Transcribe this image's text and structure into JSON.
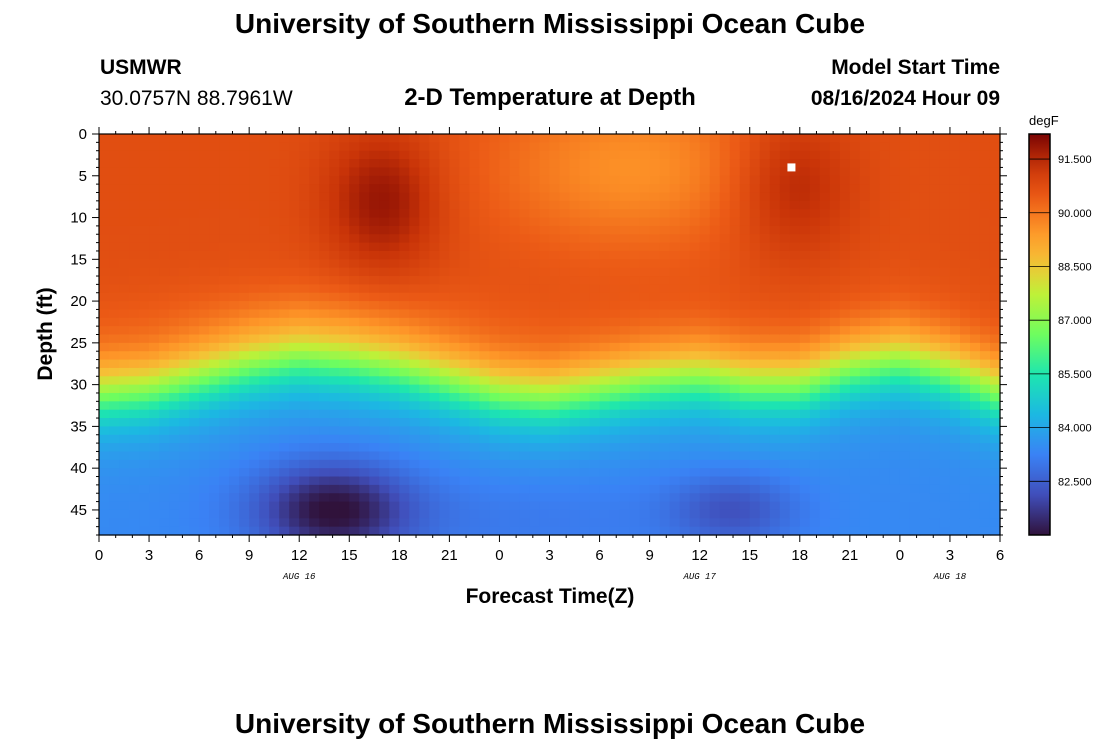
{
  "header": {
    "title": "University of Southern Mississippi Ocean Cube",
    "footer_title": "University of Southern Mississippi Ocean Cube",
    "station": "USMWR",
    "coords": "30.0757N  88.7961W",
    "plot_title": "2-D Temperature at Depth",
    "model_start_label": "Model Start Time",
    "model_start_value": "08/16/2024 Hour 09"
  },
  "chart_data": {
    "type": "heatmap",
    "title": "2-D Temperature at Depth",
    "xlabel": "Forecast Time(Z)",
    "ylabel": "Depth (ft)",
    "x_hours_range": [
      0,
      54
    ],
    "x_tick_labels": [
      "0",
      "3",
      "6",
      "9",
      "12",
      "15",
      "18",
      "21",
      "0",
      "3",
      "6",
      "9",
      "12",
      "15",
      "18",
      "21",
      "0",
      "3",
      "6"
    ],
    "x_tick_hours": [
      0,
      3,
      6,
      9,
      12,
      15,
      18,
      21,
      24,
      27,
      30,
      33,
      36,
      39,
      42,
      45,
      48,
      51,
      54
    ],
    "date_labels": [
      {
        "text": "AUG 16",
        "hour": 12
      },
      {
        "text": "AUG 17",
        "hour": 36
      },
      {
        "text": "AUG 18",
        "hour": 51
      }
    ],
    "y_range": [
      0,
      48
    ],
    "y_ticks": [
      0,
      5,
      10,
      15,
      20,
      25,
      30,
      35,
      40,
      45
    ],
    "colorbar": {
      "unit": "degF",
      "range": [
        81.0,
        92.2
      ],
      "tick_values": [
        91.5,
        90.0,
        88.5,
        87.0,
        85.5,
        84.0,
        82.5
      ],
      "tick_labels": [
        "91.500",
        "90.000",
        "88.500",
        "87.000",
        "85.500",
        "84.000",
        "82.500"
      ]
    },
    "thermocline_depth_ft": [
      {
        "hour": 0,
        "depth": 31
      },
      {
        "hour": 3,
        "depth": 30.5
      },
      {
        "hour": 6,
        "depth": 29
      },
      {
        "hour": 9,
        "depth": 27.5
      },
      {
        "hour": 12,
        "depth": 26.5
      },
      {
        "hour": 15,
        "depth": 27
      },
      {
        "hour": 18,
        "depth": 28
      },
      {
        "hour": 21,
        "depth": 29.5
      },
      {
        "hour": 24,
        "depth": 31
      },
      {
        "hour": 27,
        "depth": 31.5
      },
      {
        "hour": 30,
        "depth": 30.5
      },
      {
        "hour": 33,
        "depth": 29.5
      },
      {
        "hour": 36,
        "depth": 29
      },
      {
        "hour": 39,
        "depth": 30
      },
      {
        "hour": 42,
        "depth": 30
      },
      {
        "hour": 45,
        "depth": 28
      },
      {
        "hour": 48,
        "depth": 27
      },
      {
        "hour": 51,
        "depth": 28.5
      },
      {
        "hour": 54,
        "depth": 31
      }
    ],
    "features": [
      {
        "kind": "warm",
        "hour": 17,
        "depth": 8,
        "value": 91.9
      },
      {
        "kind": "warm",
        "hour": 41.5,
        "depth": 6,
        "value": 91.7
      },
      {
        "kind": "cool_surface",
        "hour": 32,
        "depth": 4,
        "value": 89.6
      },
      {
        "kind": "cold",
        "hour": 14,
        "depth": 45,
        "value": 81.3
      },
      {
        "kind": "cold",
        "hour": 38,
        "depth": 45,
        "value": 82.3
      }
    ],
    "marker": {
      "hour": 41.5,
      "depth": 4
    }
  }
}
